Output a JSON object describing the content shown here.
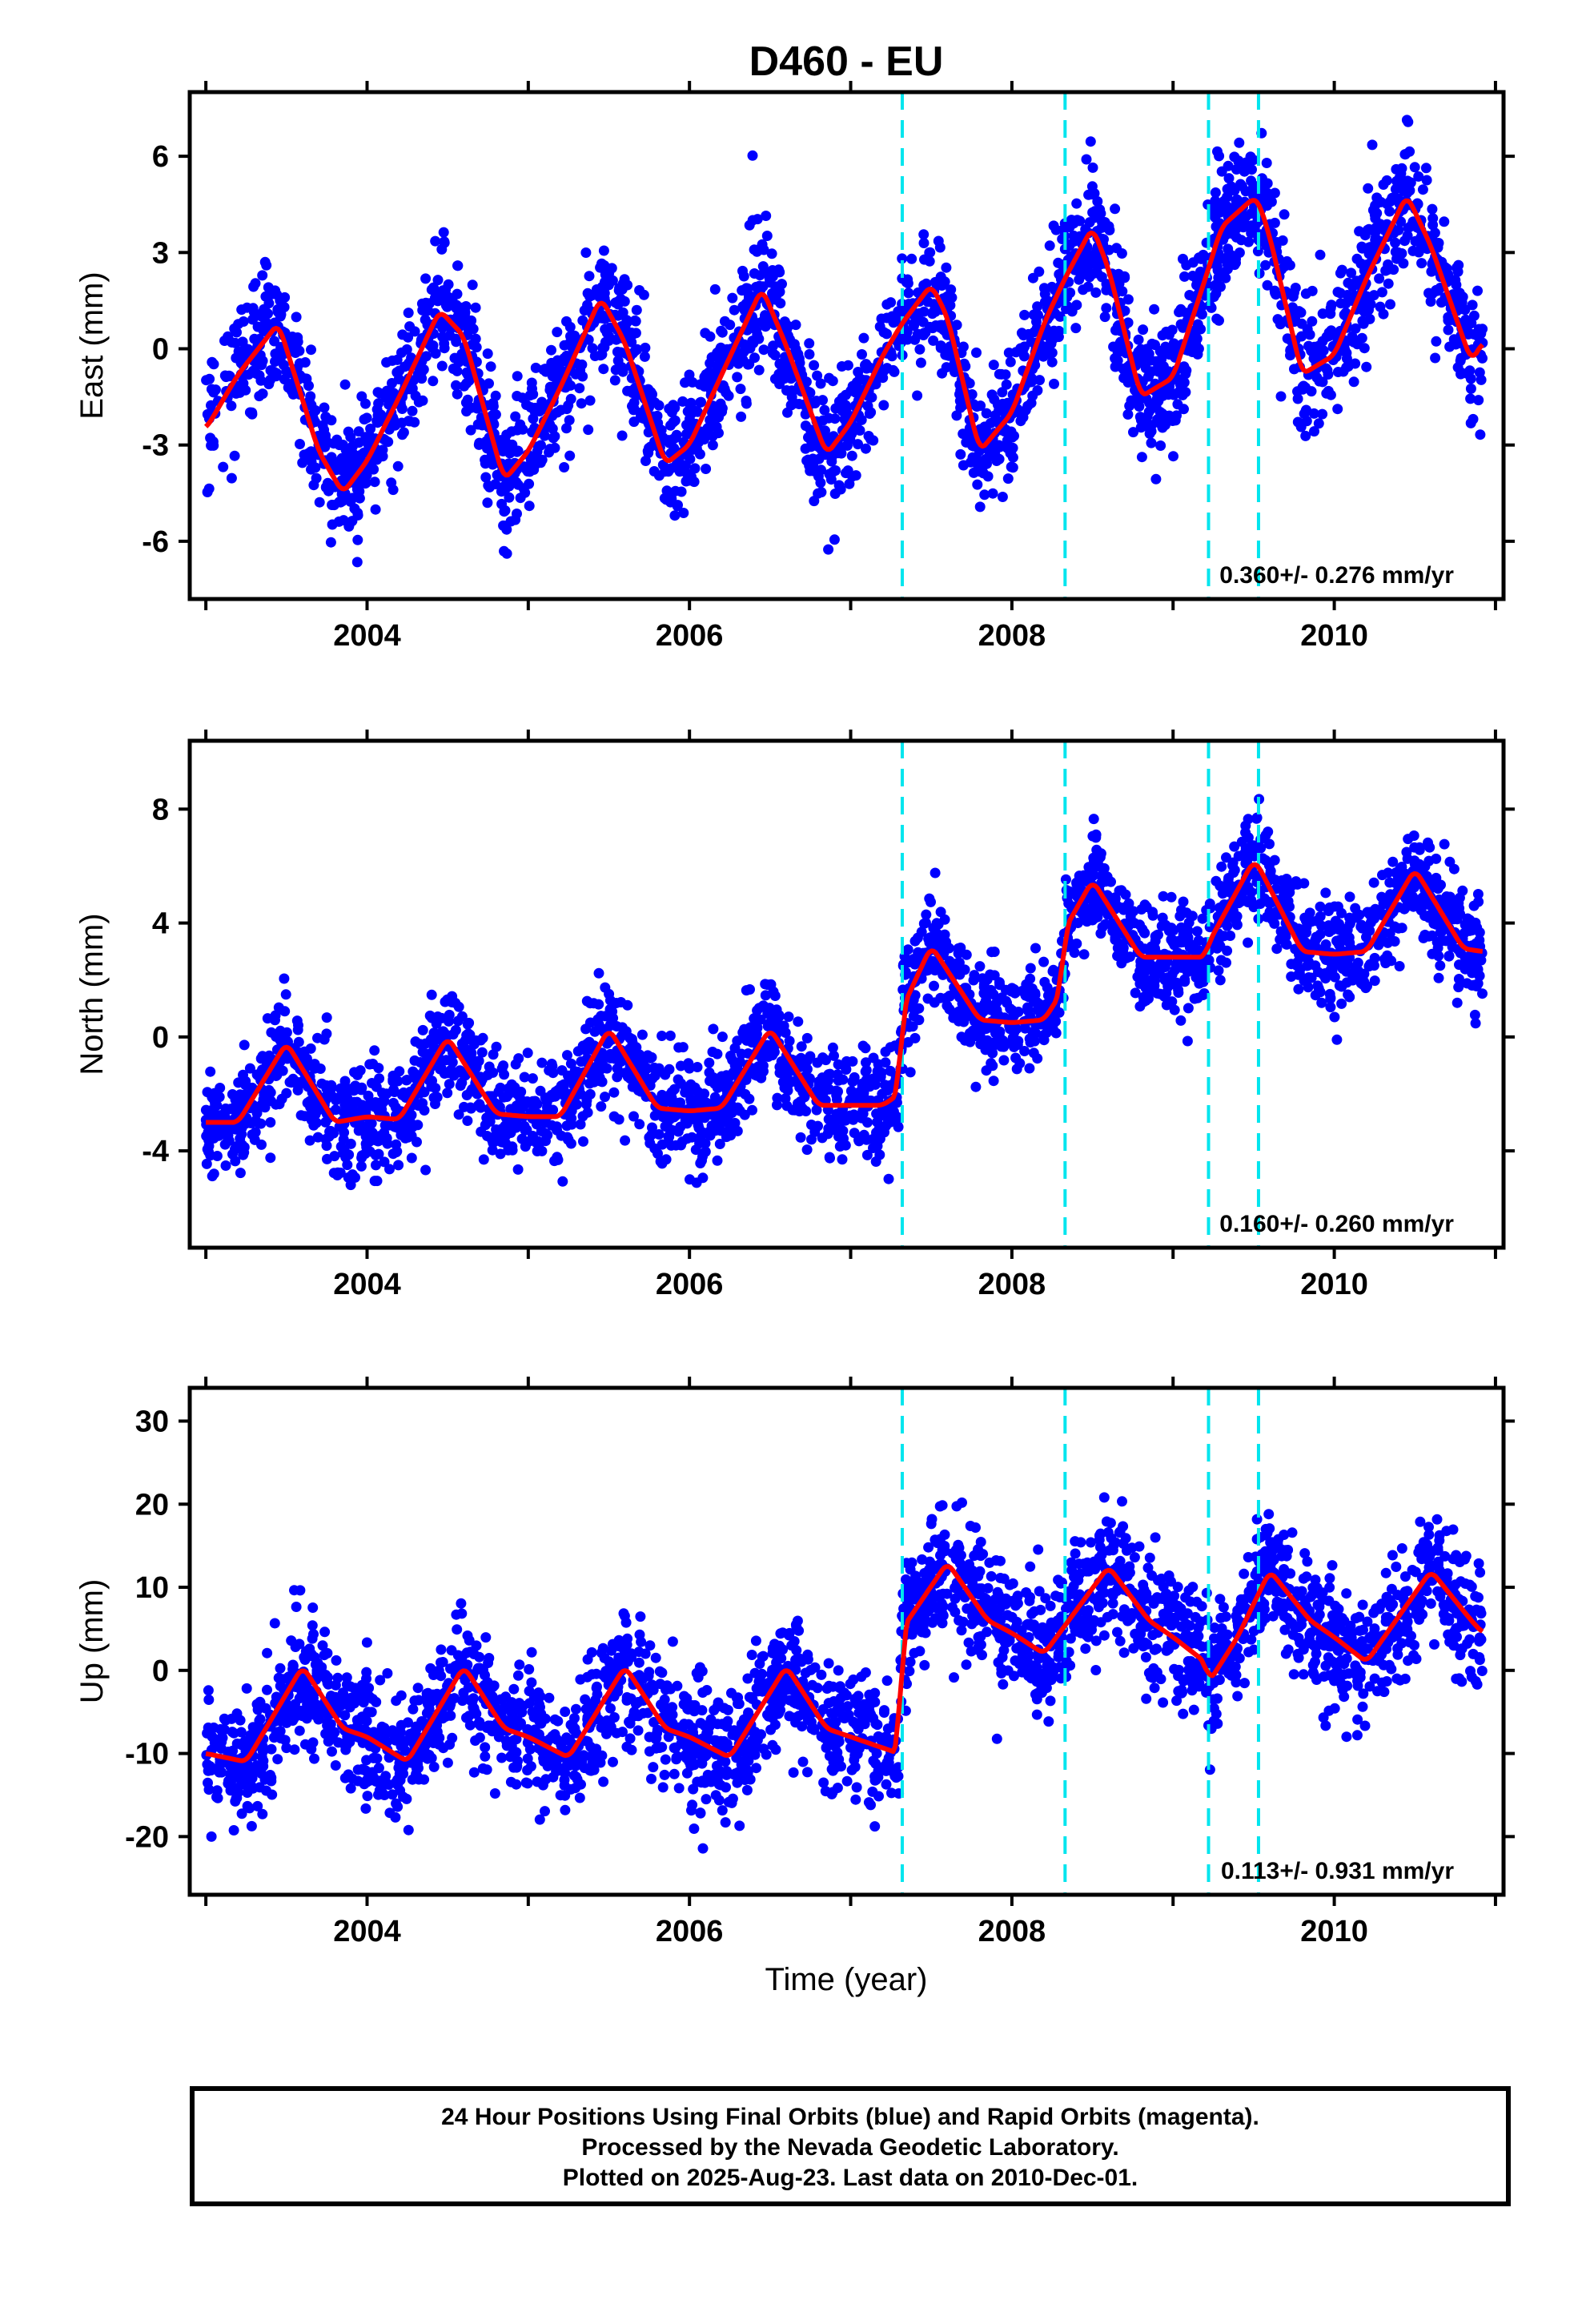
{
  "chart_data": [
    {
      "type": "scatter",
      "panel": "east",
      "title": "D460 - EU",
      "ylabel": "East (mm)",
      "xlabel": "",
      "xlim": [
        2002.9,
        2011.05
      ],
      "ylim": [
        -7.8,
        8.0
      ],
      "x_ticks": [
        2004,
        2006,
        2008,
        2010
      ],
      "y_ticks": [
        -6,
        -3,
        0,
        3,
        6
      ],
      "rate_label": "0.360+/- 0.276 mm/yr",
      "event_lines": [
        2007.32,
        2008.33,
        2009.22,
        2009.53
      ],
      "model": {
        "color": "#ff0000",
        "x": [
          2003.0,
          2003.2,
          2003.45,
          2003.7,
          2003.85,
          2004.0,
          2004.2,
          2004.45,
          2004.6,
          2004.85,
          2005.0,
          2005.2,
          2005.45,
          2005.6,
          2005.85,
          2006.0,
          2006.2,
          2006.45,
          2006.6,
          2006.85,
          2007.0,
          2007.2,
          2007.32,
          2007.5,
          2007.6,
          2007.8,
          2008.0,
          2008.2,
          2008.33,
          2008.5,
          2008.6,
          2008.8,
          2009.0,
          2009.22,
          2009.3,
          2009.5,
          2009.53,
          2009.6,
          2009.8,
          2010.0,
          2010.2,
          2010.45,
          2010.6,
          2010.85,
          2010.92
        ],
        "y": [
          -2.5,
          -0.8,
          0.8,
          -3.2,
          -4.5,
          -3.5,
          -1.5,
          1.2,
          0.4,
          -4.1,
          -3.2,
          -1.2,
          1.6,
          0.2,
          -3.6,
          -3.0,
          -0.8,
          1.9,
          0.1,
          -3.3,
          -2.3,
          -0.2,
          0.8,
          2.0,
          1.0,
          -3.2,
          -2.0,
          0.8,
          2.2,
          3.8,
          2.5,
          -1.5,
          -0.9,
          2.5,
          3.8,
          4.7,
          4.6,
          3.5,
          -0.8,
          -0.2,
          2.2,
          4.8,
          3.2,
          -0.4,
          0.2
        ]
      },
      "scatter": {
        "color": "#0000ff",
        "n": 2800,
        "noise_sd": 1.0,
        "range_note": "values about -7.6 to 7.8"
      }
    },
    {
      "type": "scatter",
      "panel": "north",
      "ylabel": "North (mm)",
      "xlabel": "",
      "xlim": [
        2002.9,
        2011.05
      ],
      "ylim": [
        -7.4,
        10.4
      ],
      "x_ticks": [
        2004,
        2006,
        2008,
        2010
      ],
      "y_ticks": [
        -4,
        0,
        4,
        8
      ],
      "rate_label": "0.160+/- 0.260 mm/yr",
      "event_lines": [
        2007.32,
        2008.33,
        2009.22,
        2009.53
      ],
      "model": {
        "color": "#ff0000",
        "x": [
          2003.0,
          2003.2,
          2003.5,
          2003.8,
          2004.0,
          2004.2,
          2004.5,
          2004.8,
          2005.0,
          2005.2,
          2005.5,
          2005.8,
          2006.0,
          2006.2,
          2006.5,
          2006.8,
          2007.0,
          2007.2,
          2007.3,
          2007.32,
          2007.5,
          2007.8,
          2008.0,
          2008.2,
          2008.3,
          2008.33,
          2008.5,
          2008.8,
          2009.0,
          2009.2,
          2009.22,
          2009.5,
          2009.53,
          2009.8,
          2010.0,
          2010.2,
          2010.5,
          2010.8,
          2010.92
        ],
        "y": [
          -3.0,
          -3.0,
          -0.2,
          -3.0,
          -2.8,
          -2.9,
          0.0,
          -2.7,
          -2.8,
          -2.8,
          0.3,
          -2.5,
          -2.6,
          -2.5,
          0.3,
          -2.4,
          -2.4,
          -2.4,
          -2.0,
          1.0,
          3.2,
          0.6,
          0.5,
          0.6,
          1.5,
          3.8,
          5.5,
          2.8,
          2.8,
          2.8,
          3.3,
          6.2,
          6.0,
          3.0,
          2.9,
          3.0,
          5.9,
          3.1,
          3.0
        ]
      },
      "scatter": {
        "color": "#0000ff",
        "n": 2800,
        "noise_sd": 0.95,
        "range_note": "values about -7 to 10"
      }
    },
    {
      "type": "scatter",
      "panel": "up",
      "ylabel": "Up (mm)",
      "xlabel": "Time (year)",
      "xlim": [
        2002.9,
        2011.05
      ],
      "ylim": [
        -27,
        34
      ],
      "x_ticks": [
        2004,
        2006,
        2008,
        2010
      ],
      "y_ticks": [
        -20,
        -10,
        0,
        10,
        20,
        30
      ],
      "rate_label": "0.113+/- 0.931 mm/yr",
      "event_lines": [
        2007.32,
        2008.33,
        2009.22,
        2009.53
      ],
      "model": {
        "color": "#ff0000",
        "x": [
          2003.0,
          2003.25,
          2003.6,
          2003.85,
          2004.0,
          2004.25,
          2004.6,
          2004.85,
          2005.0,
          2005.25,
          2005.6,
          2005.85,
          2006.0,
          2006.25,
          2006.6,
          2006.85,
          2007.0,
          2007.3,
          2007.32,
          2007.6,
          2007.85,
          2008.0,
          2008.2,
          2008.6,
          2008.85,
          2009.0,
          2009.2,
          2009.22,
          2009.4,
          2009.6,
          2009.85,
          2010.0,
          2010.2,
          2010.6,
          2010.85,
          2010.92
        ],
        "y": [
          -10,
          -11,
          0.5,
          -7,
          -8,
          -11,
          0.5,
          -7,
          -8,
          -10.5,
          0.5,
          -7,
          -8,
          -10.5,
          0.5,
          -7,
          -8,
          -10,
          5,
          13,
          6,
          4.5,
          2,
          12.5,
          6,
          4,
          1,
          -1.5,
          4,
          12,
          6,
          4,
          1,
          12,
          6,
          4.5
        ]
      },
      "scatter": {
        "color": "#0000ff",
        "n": 2800,
        "noise_sd": 3.8,
        "range_note": "values about -25.5 to 33"
      }
    }
  ],
  "footer": {
    "line1": "24 Hour Positions Using Final Orbits (blue) and Rapid Orbits (magenta).",
    "line2": "Processed by the Nevada Geodetic Laboratory.",
    "line3": "Plotted on 2025-Aug-23. Last data on 2010-Dec-01."
  }
}
